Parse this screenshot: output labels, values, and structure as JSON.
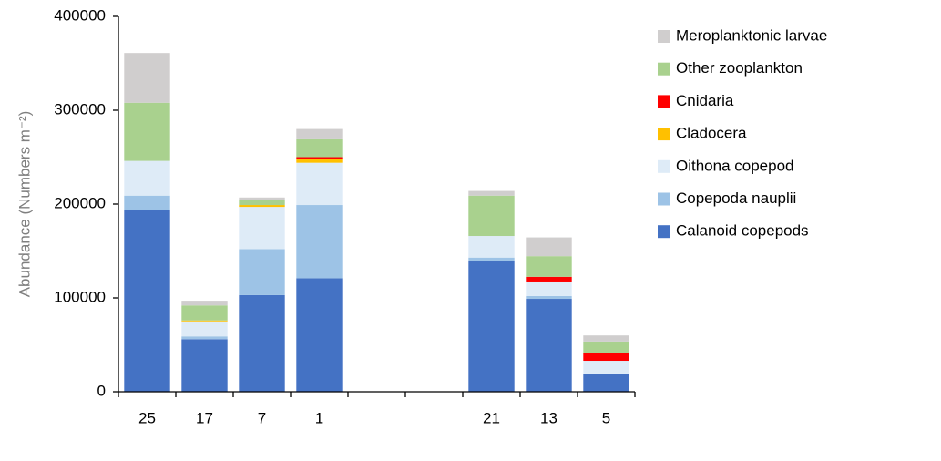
{
  "chart_data": {
    "type": "stacked_bar",
    "y_label": "Abundance (Numbers m⁻²)",
    "categories": [
      "25",
      "17",
      "7",
      "1",
      null,
      null,
      "21",
      "13",
      "5"
    ],
    "series": [
      {
        "name": "Calanoid copepods",
        "color": "#4472c4",
        "values": [
          194000,
          56000,
          103000,
          121000,
          null,
          null,
          139000,
          99000,
          18500
        ]
      },
      {
        "name": "Copepoda nauplii",
        "color": "#9dc3e6",
        "values": [
          15000,
          3000,
          49000,
          78000,
          null,
          null,
          4000,
          3000,
          1000
        ]
      },
      {
        "name": "Oithona copepod",
        "color": "#deebf7",
        "values": [
          37000,
          16000,
          45000,
          45000,
          null,
          null,
          23000,
          15500,
          13500
        ]
      },
      {
        "name": "Cladocera",
        "color": "#ffc000",
        "values": [
          0,
          1000,
          2000,
          4500,
          null,
          null,
          0,
          0,
          0
        ]
      },
      {
        "name": "Cnidaria",
        "color": "#ff0000",
        "values": [
          0,
          0,
          0,
          1500,
          null,
          null,
          0,
          5000,
          8000
        ]
      },
      {
        "name": "Other zooplankton",
        "color": "#a9d18e",
        "values": [
          62000,
          16000,
          5000,
          19000,
          null,
          null,
          43000,
          22000,
          12500
        ]
      },
      {
        "name": "Meroplanktonic larvae",
        "color": "#d0cece",
        "values": [
          53000,
          5000,
          3000,
          11000,
          null,
          null,
          5000,
          20000,
          6500
        ]
      }
    ],
    "ylim": [
      0,
      400000
    ],
    "yticks": [
      0,
      100000,
      200000,
      300000,
      400000
    ],
    "legend": "right"
  }
}
